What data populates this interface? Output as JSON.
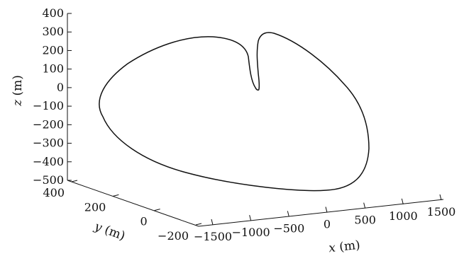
{
  "chart_data": {
    "type": "line3d",
    "axes": {
      "x": {
        "var": "x",
        "unit": "(m)",
        "ticks": [
          "−1500",
          "−1000",
          "−500",
          "0",
          "500",
          "1000",
          "1500"
        ]
      },
      "y": {
        "var": "y",
        "unit": "(m)",
        "ticks": [
          "400",
          "200",
          "0",
          "−200"
        ]
      },
      "z": {
        "var": "z",
        "unit": "(m)",
        "ticks": [
          "400",
          "300",
          "200",
          "100",
          "0",
          "−100",
          "−200",
          "−300",
          "−400",
          "−500"
        ]
      }
    },
    "grid": false,
    "curve_z_range_m": [
      -500,
      300
    ]
  }
}
